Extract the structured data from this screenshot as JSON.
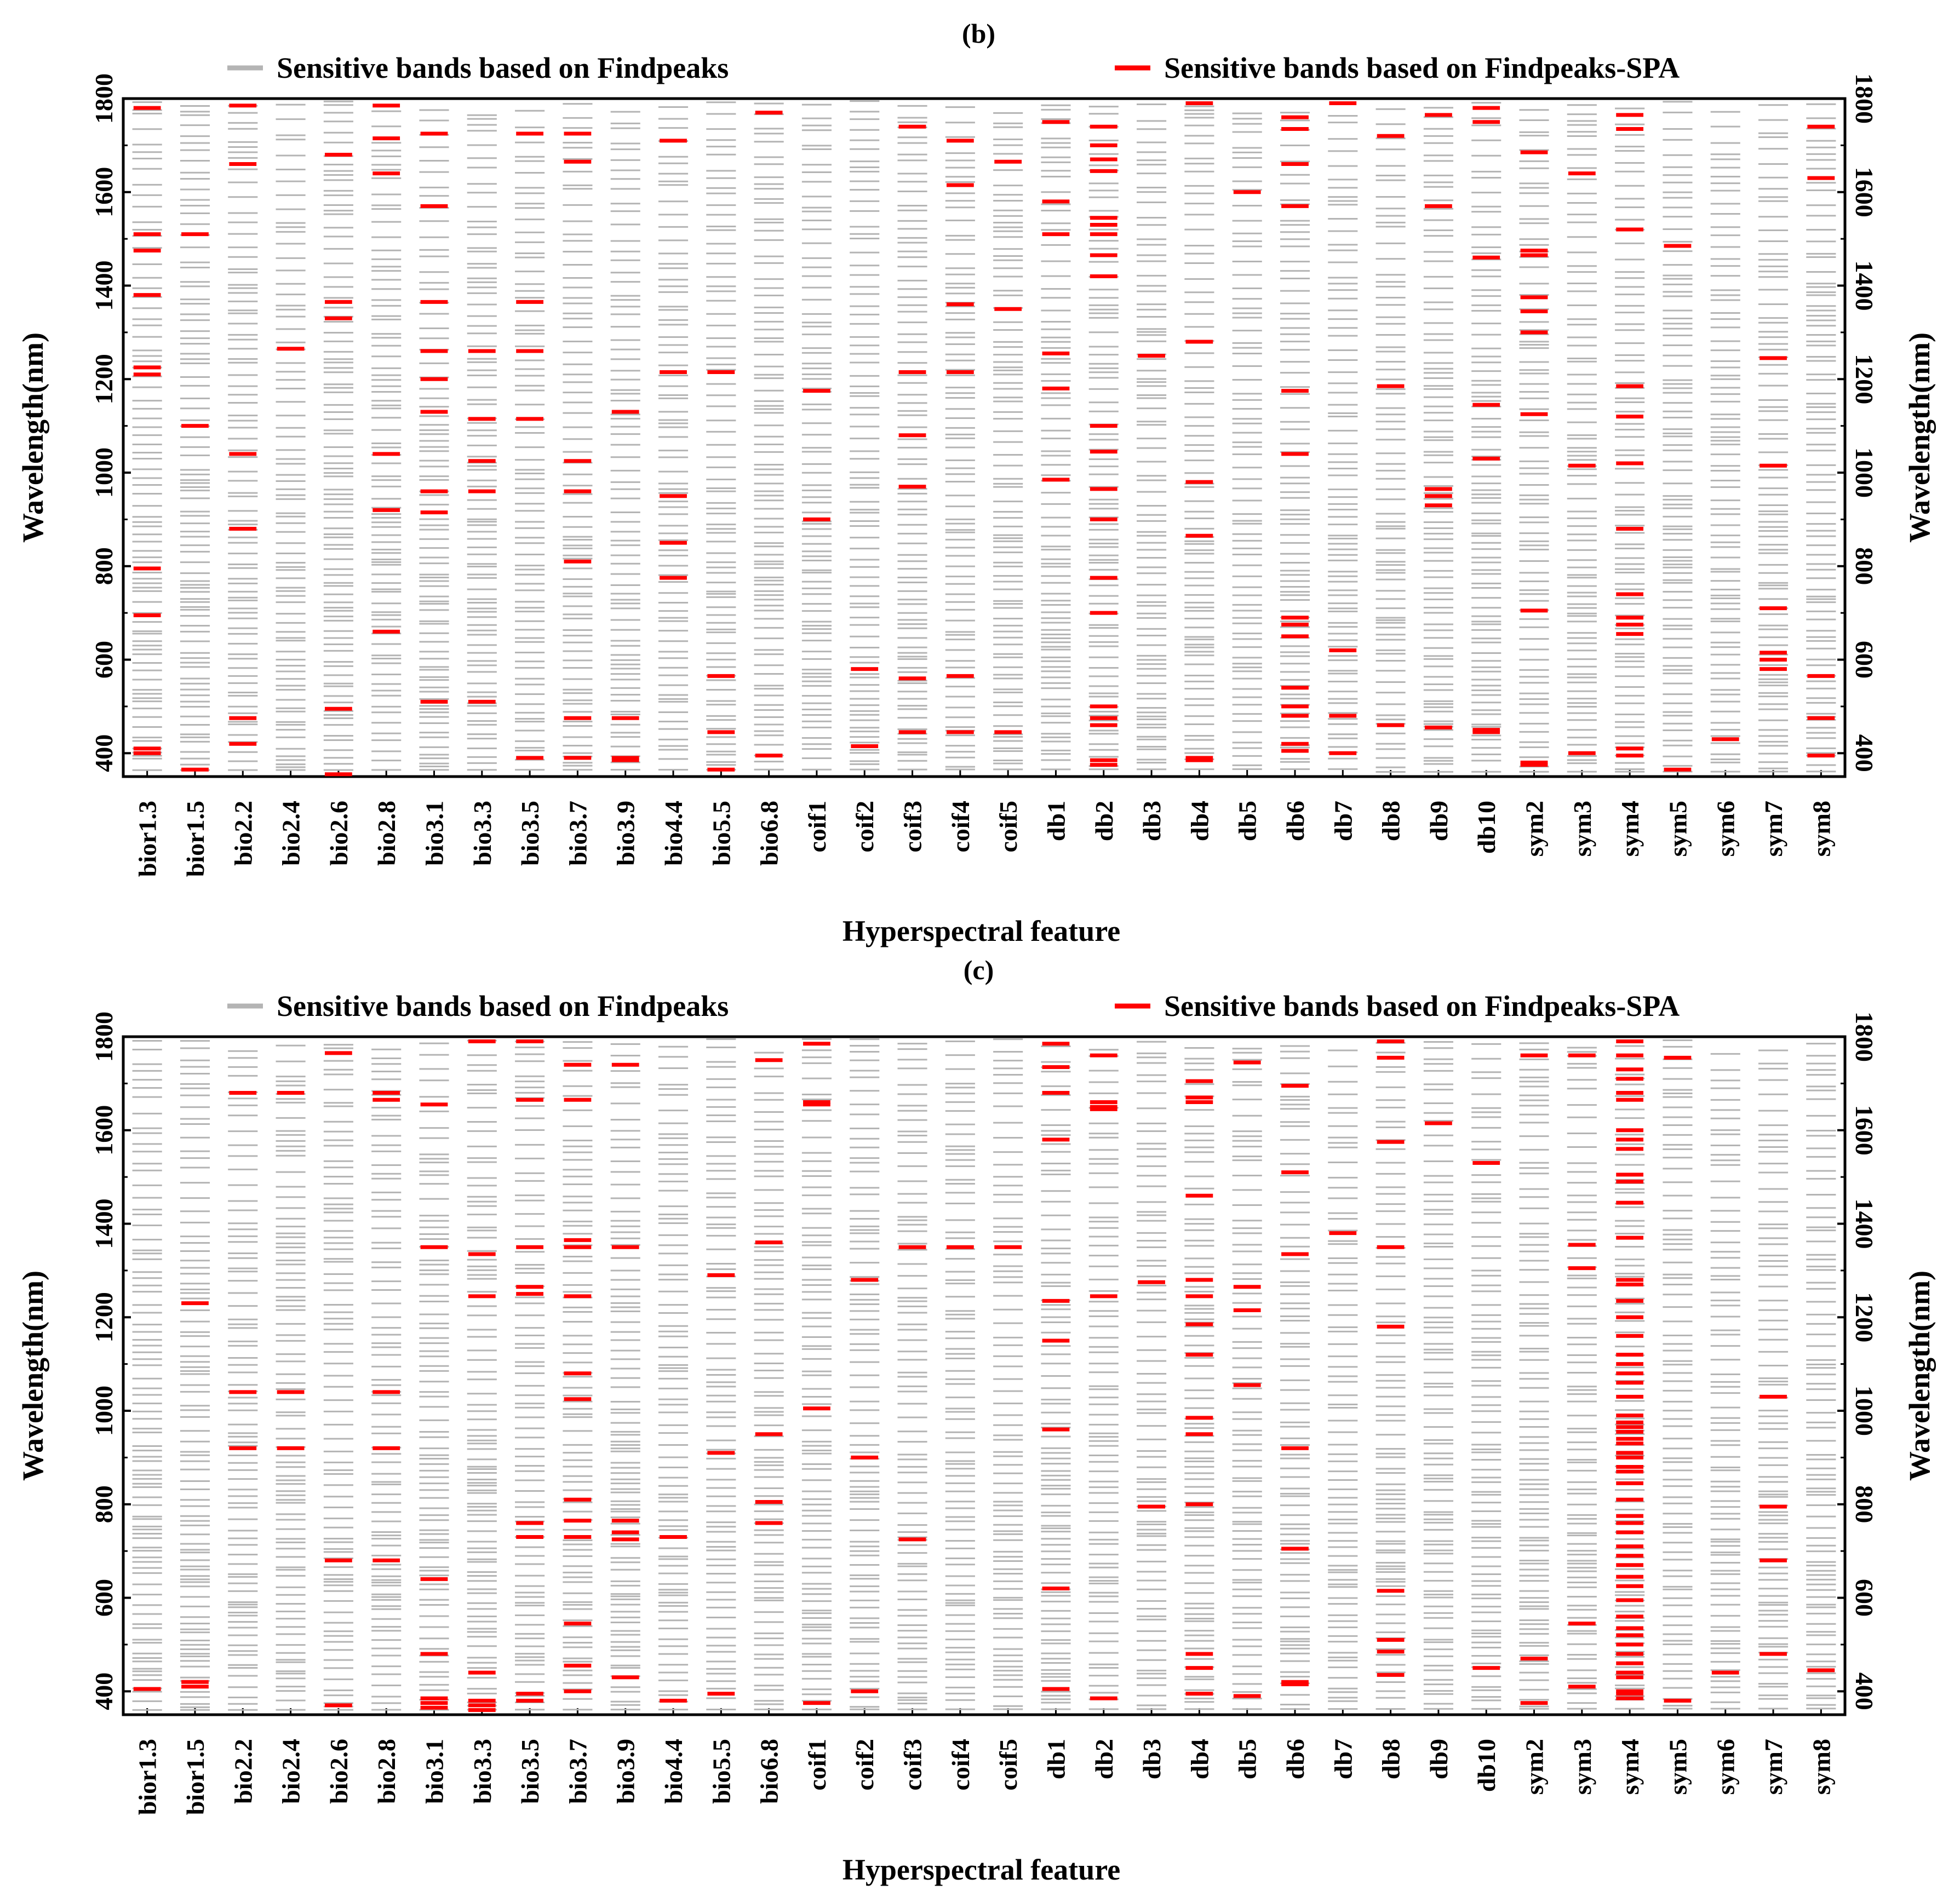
{
  "chart_data": [
    {
      "type": "event-plot",
      "panel_label": "(b)",
      "title": "(b)",
      "xlabel": "Hyperspectral feature",
      "ylabel_left": "Wavelength(nm)",
      "ylabel_right": "Wavelength(nm)",
      "ylim": [
        350,
        1800
      ],
      "yticks": [
        "400",
        "600",
        "800",
        "1000",
        "1200",
        "1400",
        "1600",
        "1800"
      ],
      "legend": [
        {
          "name": "Sensitive bands based on Findpeaks",
          "color": "#b4b4b4"
        },
        {
          "name": "Sensitive bands based on Findpeaks-SPA",
          "color": "#ff0000"
        }
      ],
      "categories": [
        "bior1.3",
        "bior1.5",
        "bio2.2",
        "bio2.4",
        "bio2.6",
        "bio2.8",
        "bio3.1",
        "bio3.3",
        "bio3.5",
        "bio3.7",
        "bio3.9",
        "bio4.4",
        "bio5.5",
        "bio6.8",
        "coif1",
        "coif2",
        "coif3",
        "coif4",
        "coif5",
        "db1",
        "db2",
        "db3",
        "db4",
        "db5",
        "db6",
        "db7",
        "db8",
        "db9",
        "db10",
        "sym2",
        "sym3",
        "sym4",
        "sym5",
        "sym6",
        "sym7",
        "sym8"
      ],
      "spa_bands": [
        [
          1780,
          1510,
          1475,
          1380,
          1225,
          1210,
          795,
          695,
          410,
          400
        ],
        [
          1510,
          1100,
          365
        ],
        [
          1785,
          1660,
          1040,
          880,
          475,
          420
        ],
        [
          1265
        ],
        [
          1680,
          1365,
          1330,
          495,
          355
        ],
        [
          1785,
          1715,
          1640,
          1040,
          920,
          660
        ],
        [
          1725,
          1570,
          1365,
          1260,
          1200,
          1130,
          960,
          915,
          510
        ],
        [
          1260,
          1115,
          1025,
          960,
          510
        ],
        [
          1725,
          1365,
          1260,
          1115,
          390
        ],
        [
          1725,
          1665,
          1025,
          960,
          810,
          475,
          390
        ],
        [
          1130,
          475,
          390,
          385
        ],
        [
          1710,
          1215,
          950,
          850,
          775
        ],
        [
          1215,
          565,
          445,
          365
        ],
        [
          1770,
          395
        ],
        [
          1175,
          900
        ],
        [
          580,
          415
        ],
        [
          1740,
          1215,
          1080,
          970,
          560,
          445
        ],
        [
          1710,
          1615,
          1360,
          1215,
          565,
          445
        ],
        [
          1665,
          1350,
          445
        ],
        [
          1750,
          1580,
          1510,
          1255,
          1180,
          985
        ],
        [
          1740,
          1700,
          1670,
          1645,
          1545,
          1530,
          1510,
          1465,
          1420,
          1100,
          1045,
          965,
          900,
          775,
          700,
          500,
          475,
          460,
          385,
          375
        ],
        [
          1250
        ],
        [
          1790,
          1280,
          980,
          865,
          390,
          385
        ],
        [
          1600
        ],
        [
          1760,
          1735,
          1660,
          1570,
          1175,
          1040,
          690,
          675,
          650,
          540,
          500,
          480,
          420,
          405
        ],
        [
          1790,
          620,
          480,
          400
        ],
        [
          1720,
          1185,
          460
        ],
        [
          1765,
          1570,
          965,
          950,
          930,
          455
        ],
        [
          1780,
          1750,
          1460,
          1145,
          1030,
          450,
          445
        ],
        [
          1685,
          1475,
          1465,
          1375,
          1345,
          1300,
          1125,
          705,
          380,
          375
        ],
        [
          1640,
          1015,
          400
        ],
        [
          1765,
          1735,
          1520,
          1185,
          1120,
          1020,
          880,
          740,
          690,
          675,
          655,
          410,
          395
        ],
        [
          1485,
          365
        ],
        [
          430
        ],
        [
          1245,
          1015,
          710,
          615,
          600,
          580
        ],
        [
          1740,
          1630,
          565,
          475,
          395
        ]
      ]
    },
    {
      "type": "event-plot",
      "panel_label": "(c)",
      "title": "(c)",
      "xlabel": "Hyperspectral feature",
      "ylabel_left": "Wavelength(nm)",
      "ylabel_right": "Wavelength(nm)",
      "ylim": [
        350,
        1800
      ],
      "yticks": [
        "400",
        "600",
        "800",
        "1000",
        "1200",
        "1400",
        "1600",
        "1800"
      ],
      "legend": [
        {
          "name": "Sensitive bands based on Findpeaks",
          "color": "#b4b4b4"
        },
        {
          "name": "Sensitive bands based on Findpeaks-SPA",
          "color": "#ff0000"
        }
      ],
      "categories": [
        "bior1.3",
        "bior1.5",
        "bio2.2",
        "bio2.4",
        "bio2.6",
        "bio2.8",
        "bio3.1",
        "bio3.3",
        "bio3.5",
        "bio3.7",
        "bio3.9",
        "bio4.4",
        "bio5.5",
        "bio6.8",
        "coif1",
        "coif2",
        "coif3",
        "coif4",
        "coif5",
        "db1",
        "db2",
        "db3",
        "db4",
        "db5",
        "db6",
        "db7",
        "db8",
        "db9",
        "db10",
        "sym2",
        "sym3",
        "sym4",
        "sym5",
        "sym6",
        "sym7",
        "sym8"
      ],
      "spa_bands": [
        [
          405
        ],
        [
          1230,
          420,
          410
        ],
        [
          1680,
          1040,
          920
        ],
        [
          1680,
          1040,
          920
        ],
        [
          1765,
          680,
          370
        ],
        [
          1680,
          1665,
          1040,
          920,
          680
        ],
        [
          1655,
          1350,
          640,
          480,
          385,
          375,
          365
        ],
        [
          1790,
          1335,
          1245,
          440,
          380,
          370,
          360
        ],
        [
          1790,
          1665,
          1350,
          1265,
          1250,
          760,
          730,
          395,
          380
        ],
        [
          1740,
          1665,
          1365,
          1350,
          1245,
          1080,
          1025,
          810,
          765,
          730,
          545,
          455,
          400
        ],
        [
          1740,
          1350,
          765,
          740,
          725,
          430
        ],
        [
          730,
          380
        ],
        [
          1290,
          910,
          395
        ],
        [
          1750,
          1360,
          950,
          805,
          760
        ],
        [
          1785,
          1660,
          1655,
          1005,
          375
        ],
        [
          1280,
          900,
          400
        ],
        [
          1350,
          725
        ],
        [
          1350
        ],
        [
          1350
        ],
        [
          1785,
          1735,
          1680,
          1580,
          1235,
          1150,
          960,
          620,
          405
        ],
        [
          1760,
          1660,
          1650,
          1645,
          1245,
          385
        ],
        [
          1275,
          795
        ],
        [
          1705,
          1670,
          1660,
          1460,
          1280,
          1245,
          1185,
          1120,
          985,
          950,
          800,
          480,
          450,
          395
        ],
        [
          1745,
          1265,
          1215,
          1055,
          390
        ],
        [
          1695,
          1510,
          1335,
          920,
          705,
          420,
          415
        ],
        [
          1380
        ],
        [
          1790,
          1755,
          1575,
          1350,
          1180,
          615,
          510,
          485,
          435
        ],
        [
          1615
        ],
        [
          1530,
          450
        ],
        [
          1760,
          470,
          375
        ],
        [
          1760,
          1355,
          1305,
          545,
          410
        ],
        [
          1790,
          1760,
          1730,
          1710,
          1680,
          1665,
          1600,
          1580,
          1560,
          1505,
          1490,
          1445,
          1370,
          1280,
          1270,
          1235,
          1200,
          1160,
          1120,
          1100,
          1080,
          1060,
          1030,
          990,
          975,
          965,
          955,
          940,
          930,
          910,
          900,
          880,
          870,
          845,
          810,
          775,
          760,
          740,
          710,
          690,
          670,
          645,
          625,
          595,
          560,
          535,
          520,
          500,
          480,
          460,
          440,
          430,
          400,
          395,
          385
        ],
        [
          1755,
          380
        ],
        [
          440
        ],
        [
          1030,
          795,
          680,
          480
        ],
        [
          445
        ]
      ]
    }
  ]
}
